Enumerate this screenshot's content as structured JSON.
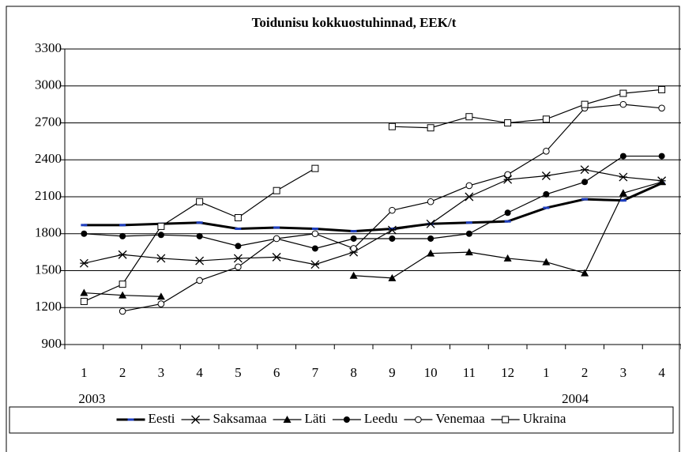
{
  "chart_data": {
    "type": "line",
    "title": "Toidunisu kokkuostuhinnad, EEK/t",
    "categories": [
      "1",
      "2",
      "3",
      "4",
      "5",
      "6",
      "7",
      "8",
      "9",
      "10",
      "11",
      "12",
      "1",
      "2",
      "3",
      "4"
    ],
    "annotations": [
      "2003",
      "2004"
    ],
    "series": [
      {
        "name": "Eesti",
        "color": "#000000",
        "marker": "dash",
        "values": [
          1870,
          1870,
          1880,
          1890,
          1840,
          1850,
          1840,
          1820,
          1840,
          1880,
          1890,
          1900,
          2010,
          2080,
          2070,
          2210
        ]
      },
      {
        "name": "Saksamaa",
        "color": "#000000",
        "marker": "star",
        "values": [
          1560,
          1630,
          1600,
          1580,
          1600,
          1610,
          1550,
          1650,
          1830,
          1880,
          2100,
          2240,
          2270,
          2320,
          2260,
          2230
        ]
      },
      {
        "name": "Läti",
        "color": "#000000",
        "marker": "triangle",
        "values": [
          1320,
          1300,
          1290,
          null,
          null,
          null,
          null,
          1460,
          1440,
          1640,
          1650,
          1600,
          1570,
          1480,
          2130,
          2220
        ]
      },
      {
        "name": "Leedu",
        "color": "#000000",
        "marker": "circle",
        "values": [
          1800,
          1780,
          1790,
          1780,
          1700,
          1760,
          1680,
          1760,
          1760,
          1760,
          1800,
          1970,
          2120,
          2220,
          2430,
          2430
        ]
      },
      {
        "name": "Venemaa",
        "color": "#000000",
        "marker": "circle-open",
        "values": [
          null,
          1170,
          1230,
          1420,
          1530,
          1760,
          1800,
          1680,
          1990,
          2060,
          2190,
          2280,
          2470,
          2820,
          2850,
          2820
        ]
      },
      {
        "name": "Ukraina",
        "color": "#000000",
        "marker": "square-open",
        "values": [
          1250,
          1390,
          1860,
          2060,
          1930,
          2150,
          2330,
          null,
          2670,
          2660,
          2750,
          2700,
          2730,
          2850,
          2940,
          2970
        ]
      }
    ],
    "ylim": [
      900,
      3300
    ],
    "yticks": [
      900,
      1200,
      1500,
      1800,
      2100,
      2400,
      2700,
      3000,
      3300
    ],
    "grid": true,
    "legend": "bottom"
  }
}
